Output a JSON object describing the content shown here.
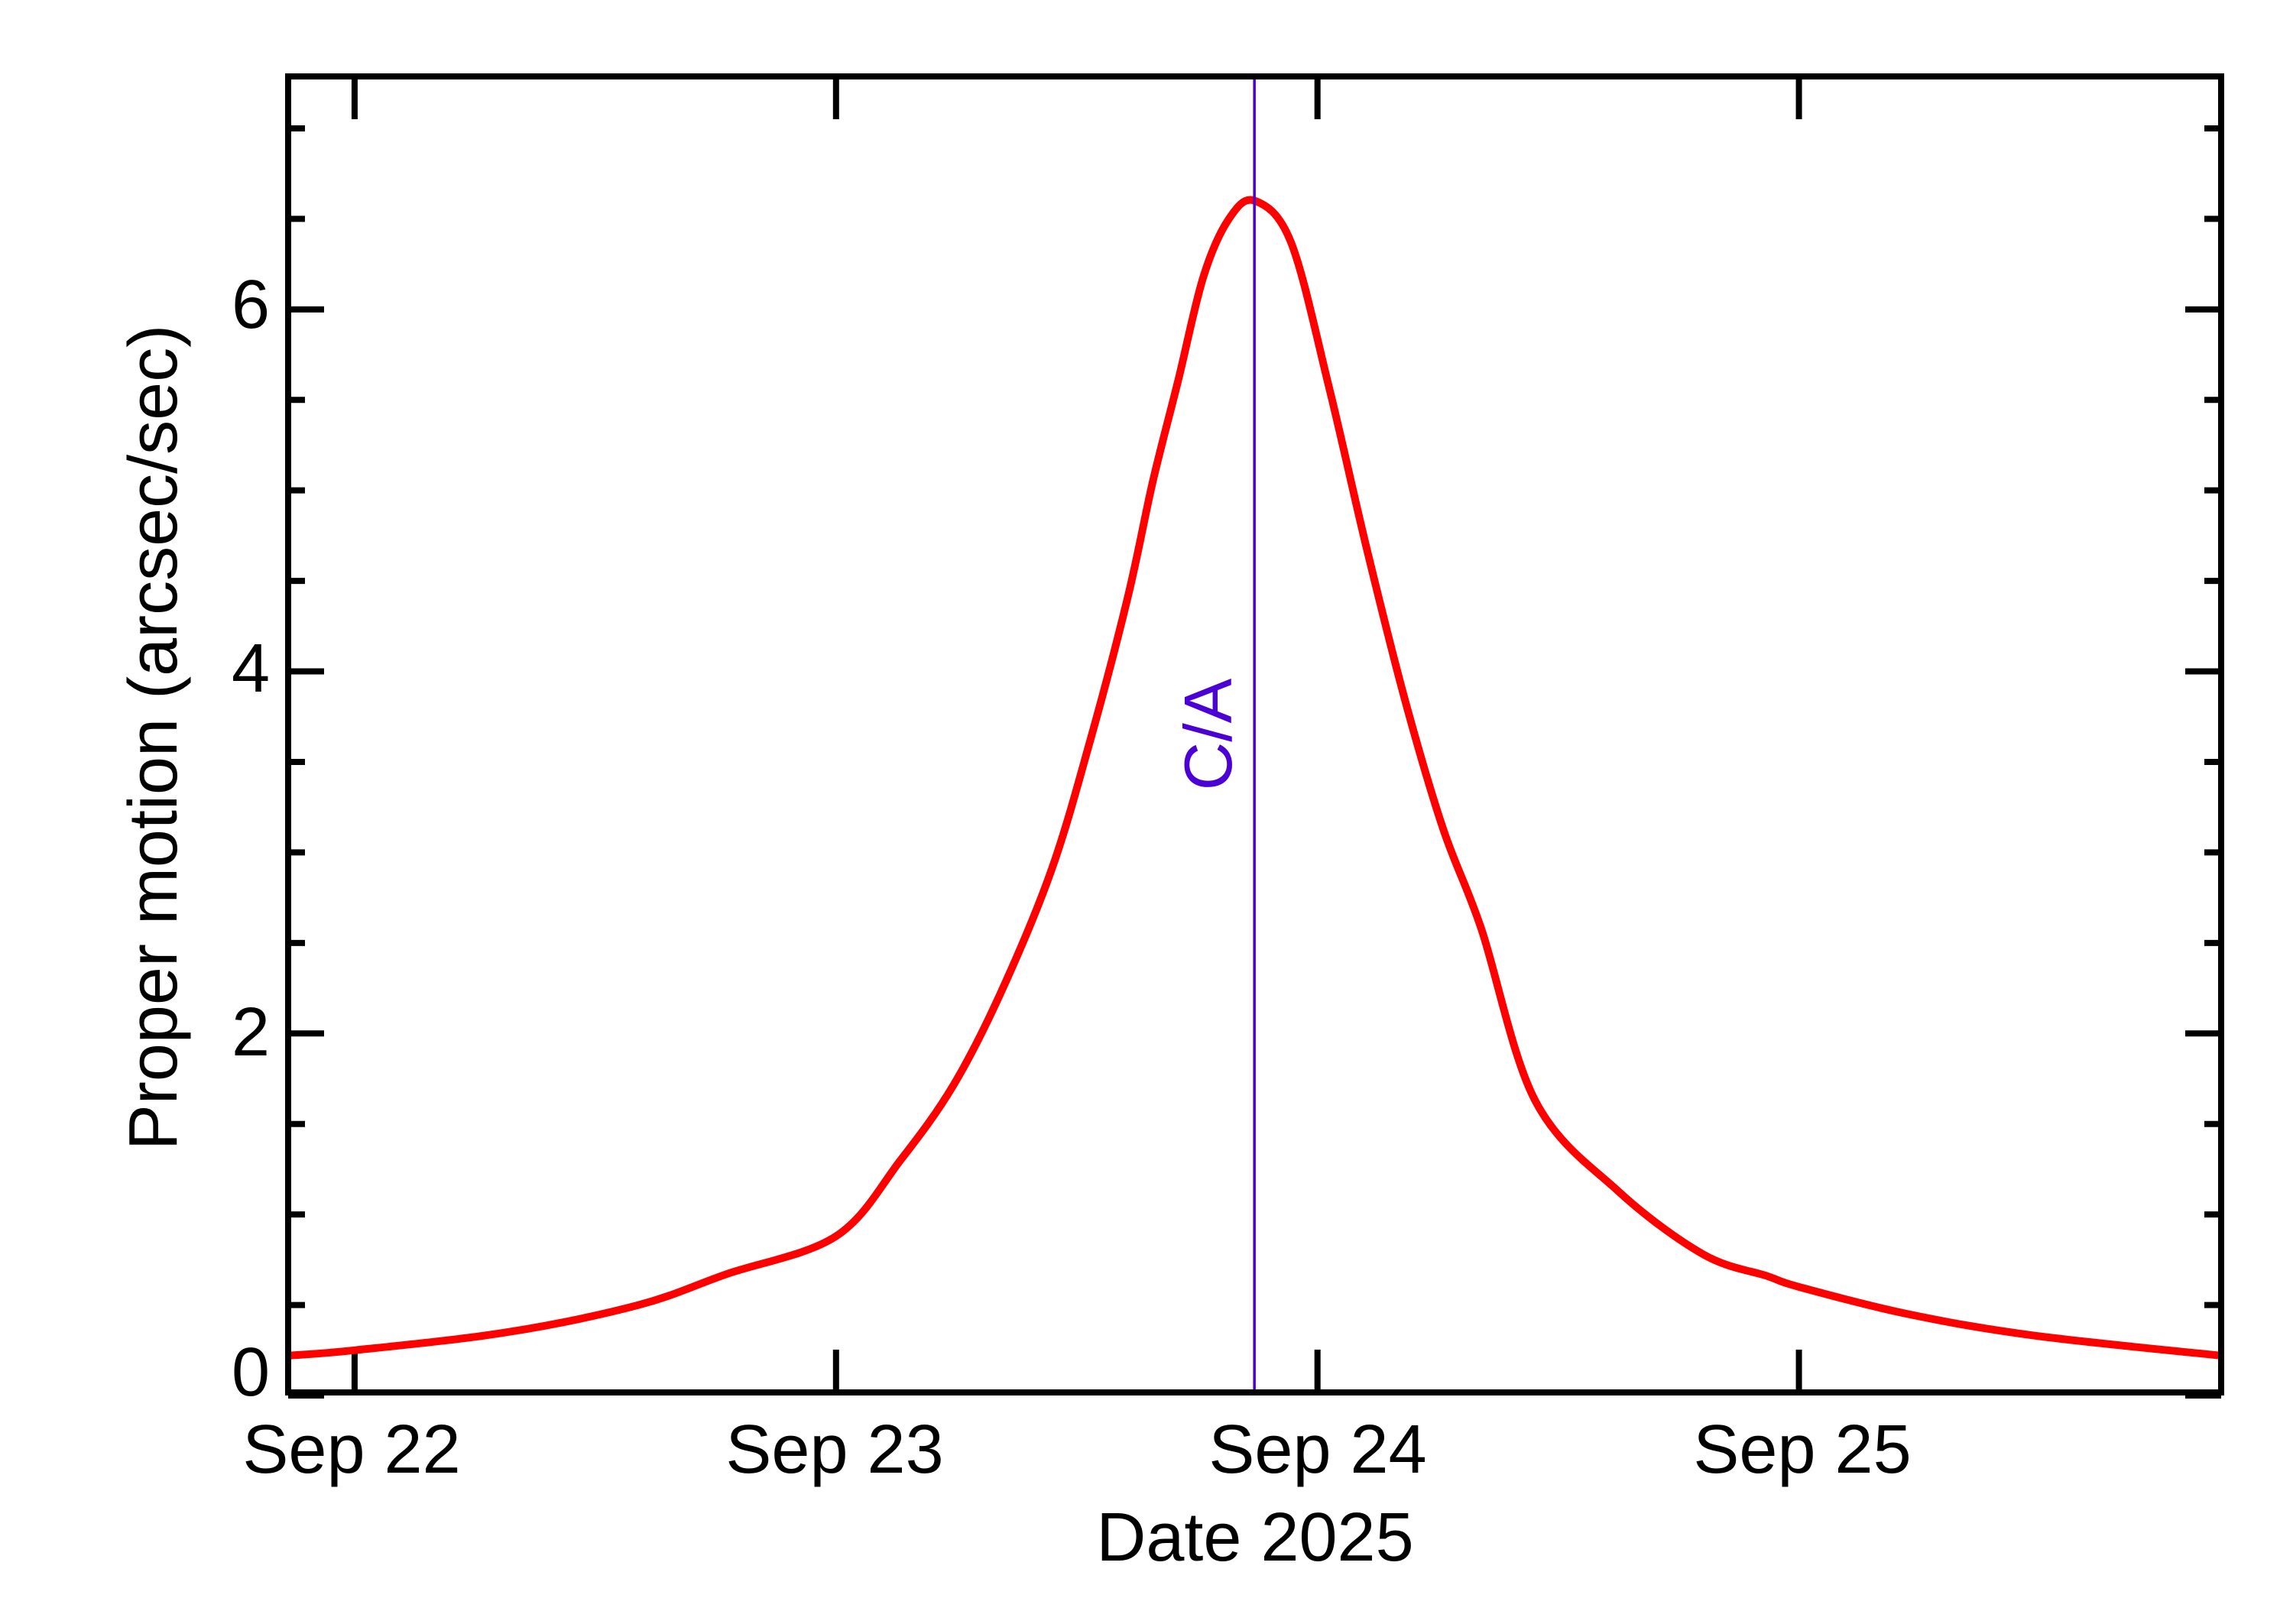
{
  "chart_data": {
    "type": "line",
    "title": "",
    "xlabel": "Date 2025",
    "ylabel": "Proper motion (arcsec/sec)",
    "x_unit": "days since Sep 22 00:00",
    "xlim": [
      -0.138,
      3.877
    ],
    "ylim": [
      0,
      7.27
    ],
    "grid": false,
    "legend": null,
    "x_ticks": [
      {
        "value": 0,
        "label": "Sep 22"
      },
      {
        "value": 1,
        "label": "Sep 23"
      },
      {
        "value": 2,
        "label": "Sep 24"
      },
      {
        "value": 3,
        "label": "Sep 25"
      }
    ],
    "y_ticks": [
      {
        "value": 0,
        "label": "0"
      },
      {
        "value": 2,
        "label": "2"
      },
      {
        "value": 4,
        "label": "4"
      },
      {
        "value": 6,
        "label": "6"
      }
    ],
    "y_minor_step": 0.5,
    "series": [
      {
        "name": "Proper motion",
        "color": "#ff0000",
        "x": [
          -0.138,
          0.0,
          0.318,
          0.59,
          0.772,
          1.0,
          1.134,
          1.251,
          1.237,
          1.343,
          1.447,
          1.527,
          1.606,
          1.658,
          1.71,
          1.763,
          1.816,
          1.87,
          1.945,
          2.024,
          2.103,
          2.182,
          2.261,
          2.34,
          2.452,
          2.624,
          2.801,
          2.934,
          3.0,
          3.226,
          3.491,
          3.877
        ],
        "values": [
          0.22,
          0.25,
          0.35,
          0.5,
          0.67,
          0.88,
          1.3,
          1.75,
          1.68,
          2.23,
          2.9,
          3.61,
          4.41,
          5.05,
          5.6,
          6.18,
          6.5,
          6.6,
          6.37,
          5.57,
          4.67,
          3.84,
          3.13,
          2.58,
          1.63,
          1.13,
          0.78,
          0.66,
          0.6,
          0.45,
          0.33,
          0.22
        ]
      }
    ],
    "annotations": [
      {
        "type": "vline",
        "x": 1.869,
        "label": "C/A",
        "color": "#4b00d6"
      }
    ],
    "peak": {
      "x": 1.869,
      "value": 6.6
    }
  },
  "axes": {
    "xlabel": "Date 2025",
    "ylabel": "Proper motion (arcsec/sec)",
    "x_tick_labels": [
      "Sep 22",
      "Sep 23",
      "Sep 24",
      "Sep 25"
    ],
    "y_tick_labels": [
      "0",
      "2",
      "4",
      "6"
    ]
  },
  "annotation": {
    "ca_label": "C/A"
  },
  "colors": {
    "curve": "#ff0000",
    "ca_line": "#4b00d6",
    "axes": "#000000",
    "background": "#ffffff"
  }
}
